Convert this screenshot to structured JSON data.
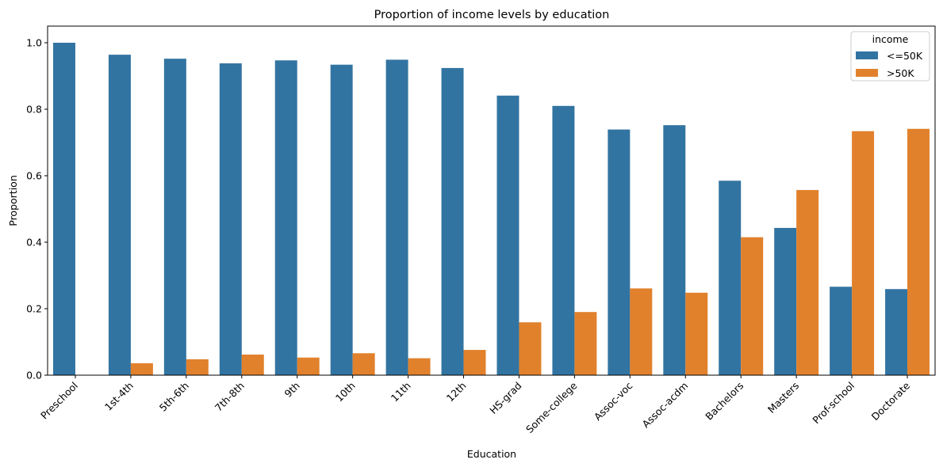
{
  "chart_data": {
    "type": "bar",
    "title": "Proportion of income levels by education",
    "xlabel": "Education",
    "ylabel": "Proportion",
    "ylim": [
      0,
      1.05
    ],
    "yticks": [
      0.0,
      0.2,
      0.4,
      0.6,
      0.8,
      1.0
    ],
    "ytick_labels": [
      "0.0",
      "0.2",
      "0.4",
      "0.6",
      "0.8",
      "1.0"
    ],
    "grid": false,
    "legend": {
      "title": "income",
      "placement": "top-right"
    },
    "categories": [
      "Preschool",
      "1st-4th",
      "5th-6th",
      "7th-8th",
      "9th",
      "10th",
      "11th",
      "12th",
      "HS-grad",
      "Some-college",
      "Assoc-voc",
      "Assoc-acdm",
      "Bachelors",
      "Masters",
      "Prof-school",
      "Doctorate"
    ],
    "series": [
      {
        "name": "<=50K",
        "color": "#3274a1",
        "values": [
          1.0,
          0.964,
          0.952,
          0.938,
          0.947,
          0.934,
          0.949,
          0.924,
          0.841,
          0.81,
          0.739,
          0.752,
          0.585,
          0.443,
          0.266,
          0.259
        ]
      },
      {
        "name": ">50K",
        "color": "#e1812c",
        "values": [
          0.0,
          0.036,
          0.048,
          0.062,
          0.053,
          0.066,
          0.051,
          0.076,
          0.159,
          0.19,
          0.261,
          0.248,
          0.415,
          0.557,
          0.734,
          0.741
        ]
      }
    ]
  }
}
